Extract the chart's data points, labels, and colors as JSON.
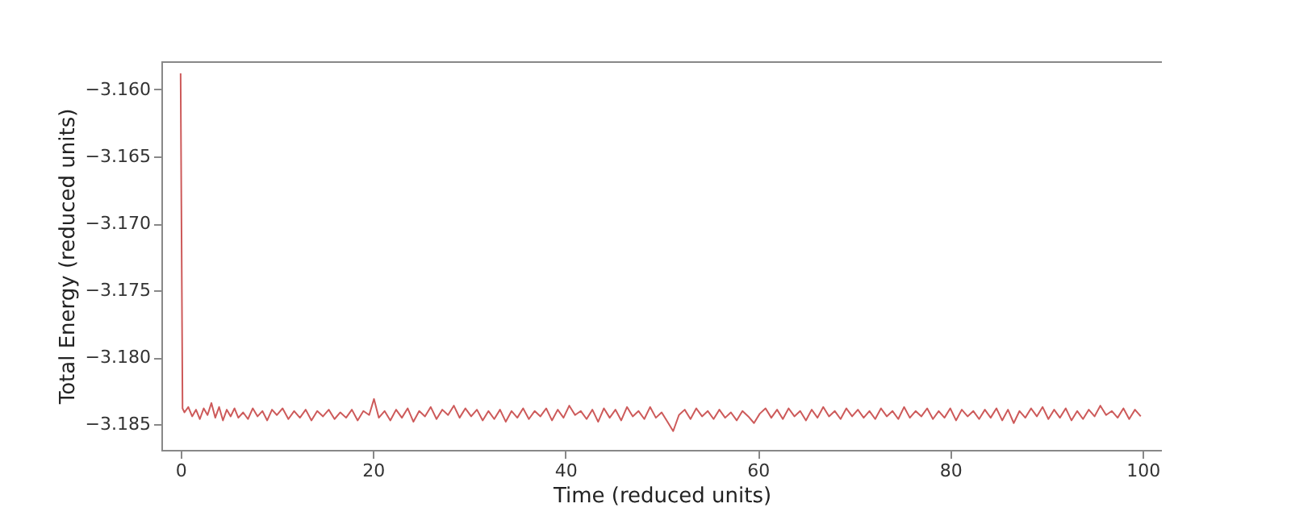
{
  "chart_data": {
    "type": "line",
    "xlabel": "Time (reduced units)",
    "ylabel": "Total Energy (reduced units)",
    "xlim": [
      -2,
      102
    ],
    "xticks": [
      0,
      20,
      40,
      60,
      80,
      100
    ],
    "ylim": [
      -3.1869,
      -3.1579
    ],
    "yticks": [
      {
        "value": -3.16,
        "label": "−3.160"
      },
      {
        "value": -3.165,
        "label": "−3.165"
      },
      {
        "value": -3.17,
        "label": "−3.170"
      },
      {
        "value": -3.175,
        "label": "−3.175"
      },
      {
        "value": -3.18,
        "label": "−3.180"
      },
      {
        "value": -3.185,
        "label": "−3.185"
      }
    ],
    "grid": false,
    "legend": false,
    "marker": "none",
    "line_style": "solid",
    "series": [
      {
        "color": "#cd5a5a",
        "x": [
          0,
          0.2,
          0.4,
          0.8,
          1.2,
          1.6,
          2.0,
          2.4,
          2.8,
          3.2,
          3.6,
          4.0,
          4.4,
          4.8,
          5.2,
          5.6,
          6.0,
          6.5,
          7.0,
          7.5,
          8.0,
          8.5,
          9.0,
          9.5,
          10.0,
          10.6,
          11.2,
          11.8,
          12.4,
          13.0,
          13.6,
          14.2,
          14.8,
          15.4,
          16.0,
          16.6,
          17.2,
          17.8,
          18.4,
          19.0,
          19.6,
          20.1,
          20.6,
          21.2,
          21.8,
          22.4,
          23.0,
          23.6,
          24.2,
          24.8,
          25.4,
          26.0,
          26.6,
          27.2,
          27.8,
          28.4,
          29.0,
          29.6,
          30.2,
          30.8,
          31.4,
          32.0,
          32.6,
          33.2,
          33.8,
          34.4,
          35.0,
          35.6,
          36.2,
          36.8,
          37.4,
          38.0,
          38.6,
          39.2,
          39.8,
          40.4,
          41.0,
          41.6,
          42.2,
          42.8,
          43.4,
          44.0,
          44.6,
          45.2,
          45.8,
          46.4,
          47.0,
          47.6,
          48.2,
          48.8,
          49.4,
          50.0,
          50.6,
          51.2,
          51.8,
          52.4,
          53.0,
          53.6,
          54.2,
          54.8,
          55.4,
          56.0,
          56.6,
          57.2,
          57.8,
          58.4,
          59.0,
          59.6,
          60.2,
          60.8,
          61.4,
          62.0,
          62.6,
          63.2,
          63.8,
          64.4,
          65.0,
          65.6,
          66.2,
          66.8,
          67.4,
          68.0,
          68.6,
          69.2,
          69.8,
          70.4,
          71.0,
          71.6,
          72.2,
          72.8,
          73.4,
          74.0,
          74.6,
          75.2,
          75.8,
          76.4,
          77.0,
          77.6,
          78.2,
          78.8,
          79.4,
          80.0,
          80.6,
          81.2,
          81.8,
          82.4,
          83.0,
          83.6,
          84.2,
          84.8,
          85.4,
          86.0,
          86.6,
          87.2,
          87.8,
          88.4,
          89.0,
          89.6,
          90.2,
          90.8,
          91.4,
          92.0,
          92.6,
          93.2,
          93.8,
          94.4,
          95.0,
          95.6,
          96.2,
          96.8,
          97.4,
          98.0,
          98.6,
          99.2,
          99.8
        ],
        "values": [
          -3.1588,
          -3.1838,
          -3.1841,
          -3.1837,
          -3.1844,
          -3.1839,
          -3.1846,
          -3.1838,
          -3.1843,
          -3.1834,
          -3.1845,
          -3.1837,
          -3.1847,
          -3.1839,
          -3.1844,
          -3.1838,
          -3.1845,
          -3.1841,
          -3.1846,
          -3.1838,
          -3.1844,
          -3.184,
          -3.1847,
          -3.1839,
          -3.1843,
          -3.1838,
          -3.1846,
          -3.184,
          -3.1845,
          -3.1839,
          -3.1847,
          -3.184,
          -3.1844,
          -3.1839,
          -3.1846,
          -3.1841,
          -3.1845,
          -3.1839,
          -3.1847,
          -3.184,
          -3.1843,
          -3.1831,
          -3.1845,
          -3.184,
          -3.1847,
          -3.1839,
          -3.1845,
          -3.1838,
          -3.1848,
          -3.184,
          -3.1844,
          -3.1837,
          -3.1846,
          -3.1839,
          -3.1843,
          -3.1836,
          -3.1845,
          -3.1838,
          -3.1844,
          -3.1839,
          -3.1847,
          -3.184,
          -3.1846,
          -3.1839,
          -3.1848,
          -3.184,
          -3.1845,
          -3.1838,
          -3.1846,
          -3.184,
          -3.1844,
          -3.1838,
          -3.1847,
          -3.1839,
          -3.1845,
          -3.1836,
          -3.1843,
          -3.184,
          -3.1846,
          -3.1839,
          -3.1848,
          -3.1838,
          -3.1845,
          -3.1839,
          -3.1847,
          -3.1837,
          -3.1844,
          -3.184,
          -3.1846,
          -3.1837,
          -3.1845,
          -3.1841,
          -3.1848,
          -3.1855,
          -3.1843,
          -3.1839,
          -3.1846,
          -3.1838,
          -3.1844,
          -3.184,
          -3.1846,
          -3.1839,
          -3.1845,
          -3.1841,
          -3.1847,
          -3.184,
          -3.1844,
          -3.1849,
          -3.1842,
          -3.1838,
          -3.1845,
          -3.1839,
          -3.1846,
          -3.1838,
          -3.1844,
          -3.184,
          -3.1847,
          -3.1839,
          -3.1845,
          -3.1837,
          -3.1844,
          -3.184,
          -3.1846,
          -3.1838,
          -3.1844,
          -3.1839,
          -3.1845,
          -3.184,
          -3.1846,
          -3.1838,
          -3.1844,
          -3.184,
          -3.1846,
          -3.1837,
          -3.1845,
          -3.184,
          -3.1844,
          -3.1838,
          -3.1846,
          -3.184,
          -3.1845,
          -3.1838,
          -3.1847,
          -3.1839,
          -3.1844,
          -3.184,
          -3.1846,
          -3.1839,
          -3.1845,
          -3.1838,
          -3.1847,
          -3.1839,
          -3.1849,
          -3.184,
          -3.1845,
          -3.1838,
          -3.1844,
          -3.1837,
          -3.1846,
          -3.1839,
          -3.1845,
          -3.1838,
          -3.1847,
          -3.184,
          -3.1846,
          -3.1839,
          -3.1844,
          -3.1836,
          -3.1843,
          -3.184,
          -3.1845,
          -3.1838,
          -3.1846,
          -3.1839,
          -3.1844
        ]
      }
    ]
  }
}
